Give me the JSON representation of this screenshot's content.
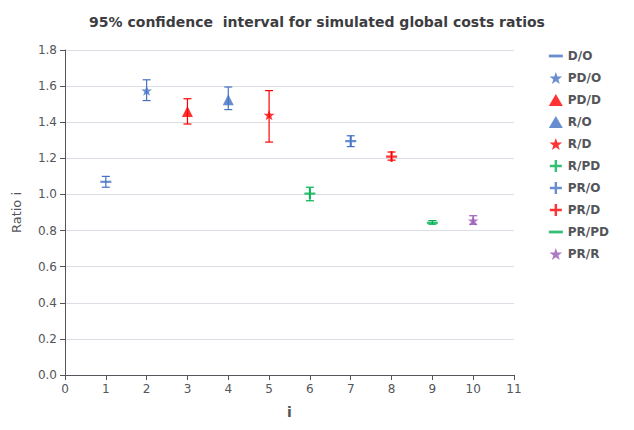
{
  "chart_data": {
    "type": "scatter",
    "title": "95% confidence  interval for simulated global costs ratios",
    "xlabel": "i",
    "ylabel": "Ratio i",
    "xlim": [
      0,
      11
    ],
    "ylim": [
      0,
      1.8
    ],
    "xticks": [
      0,
      1,
      2,
      3,
      4,
      5,
      6,
      7,
      8,
      9,
      10,
      11
    ],
    "yticks": [
      {
        "value": 0,
        "label": "0.0"
      },
      0.2,
      0.4,
      0.6,
      0.8,
      {
        "value": 1,
        "label": "1.0"
      },
      1.2,
      1.4,
      1.6,
      1.8
    ],
    "grid": "y",
    "legend": "right",
    "series": [
      {
        "name": "D/O",
        "color": "#4472C4",
        "marker": "hline",
        "x": [
          1
        ],
        "values": [
          1.07
        ],
        "y_low": [
          1.04
        ],
        "y_high": [
          1.1
        ]
      },
      {
        "name": "PD/O",
        "color": "#4472C4",
        "marker": "star",
        "x": [
          2
        ],
        "values": [
          1.575
        ],
        "y_low": [
          1.52
        ],
        "y_high": [
          1.635
        ]
      },
      {
        "name": "PD/D",
        "color": "#FF0000",
        "marker": "triangle",
        "x": [
          3
        ],
        "values": [
          1.46
        ],
        "y_low": [
          1.39
        ],
        "y_high": [
          1.53
        ]
      },
      {
        "name": "R/O",
        "color": "#4472C4",
        "marker": "triangle",
        "x": [
          4
        ],
        "values": [
          1.525
        ],
        "y_low": [
          1.47
        ],
        "y_high": [
          1.595
        ]
      },
      {
        "name": "R/D",
        "color": "#FF0000",
        "marker": "star",
        "x": [
          5
        ],
        "values": [
          1.44
        ],
        "y_low": [
          1.29
        ],
        "y_high": [
          1.575
        ]
      },
      {
        "name": "R/PD",
        "color": "#00B050",
        "marker": "plus",
        "x": [
          6
        ],
        "values": [
          1.005
        ],
        "y_low": [
          0.965
        ],
        "y_high": [
          1.04
        ]
      },
      {
        "name": "PR/O",
        "color": "#4472C4",
        "marker": "plus",
        "x": [
          7
        ],
        "values": [
          1.295
        ],
        "y_low": [
          1.265
        ],
        "y_high": [
          1.325
        ]
      },
      {
        "name": "PR/D",
        "color": "#FF0000",
        "marker": "plus",
        "x": [
          8
        ],
        "values": [
          1.21
        ],
        "y_low": [
          1.19
        ],
        "y_high": [
          1.235
        ]
      },
      {
        "name": "PR/PD",
        "color": "#00B050",
        "marker": "hline",
        "x": [
          9
        ],
        "values": [
          0.843
        ],
        "y_low": [
          0.835
        ],
        "y_high": [
          0.855
        ]
      },
      {
        "name": "PR/R",
        "color": "#9B59B6",
        "marker": "star",
        "x": [
          10
        ],
        "values": [
          0.855
        ],
        "y_low": [
          0.835
        ],
        "y_high": [
          0.882
        ]
      }
    ]
  }
}
